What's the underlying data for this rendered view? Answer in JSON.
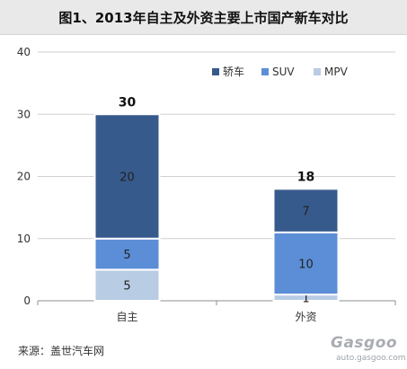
{
  "title": "图1、2013年自主及外资主要上市国产新车对比",
  "source": "来源：盖世汽车网",
  "watermark": {
    "logo": "Gasgoo",
    "url": "auto.gasgoo.com"
  },
  "chart_data": {
    "type": "bar",
    "stacked": true,
    "categories": [
      "自主",
      "外资"
    ],
    "series": [
      {
        "name": "MPV",
        "values": [
          5,
          1
        ],
        "color": "#b8cce4"
      },
      {
        "name": "SUV",
        "values": [
          5,
          10
        ],
        "color": "#5b8ed6"
      },
      {
        "name": "轿车",
        "values": [
          20,
          7
        ],
        "color": "#375a8c"
      }
    ],
    "totals": [
      30,
      18
    ],
    "legend_order": [
      "轿车",
      "SUV",
      "MPV"
    ],
    "legend_position": "top-right",
    "ylim": [
      0,
      40
    ],
    "yticks": [
      0,
      10,
      20,
      30,
      40
    ],
    "grid": true,
    "xlabel": "",
    "ylabel": ""
  }
}
